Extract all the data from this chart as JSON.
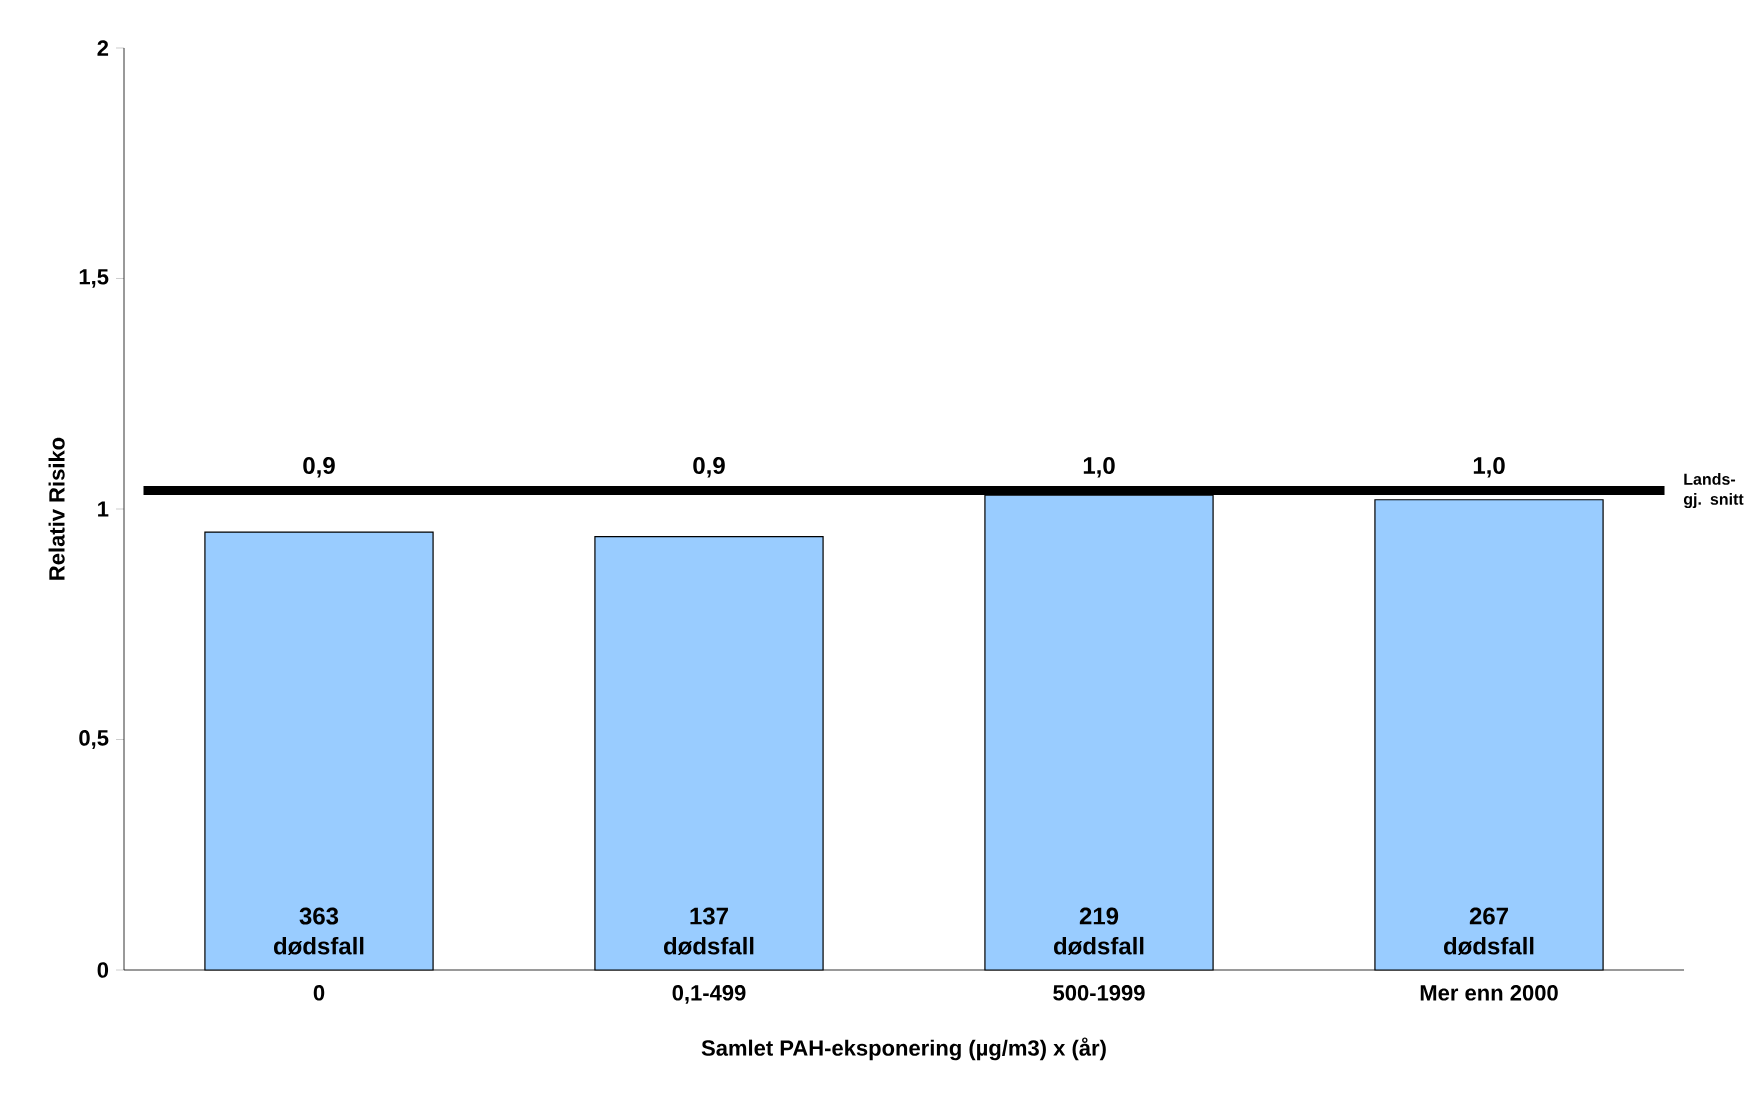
{
  "chart_data": {
    "type": "bar",
    "xlabel": "Samlet PAH-eksponering (µg/m3) x (år)",
    "ylabel": "Relativ Risiko",
    "categories": [
      "0",
      "0,1-499",
      "500-1999",
      "Mer enn 2000"
    ],
    "values": [
      0.95,
      0.94,
      1.03,
      1.02
    ],
    "value_labels": [
      "0,9",
      "0,9",
      "1,0",
      "1,0"
    ],
    "color": "#99ccff",
    "ylim": [
      0,
      2
    ],
    "yticks": [
      0,
      {
        "value": 0.5,
        "label": "0,5"
      },
      1,
      {
        "value": 1.5,
        "label": "1,5"
      },
      2
    ],
    "ref_lines": [
      {
        "axis": "y",
        "value": 1.04,
        "label": "Lands- gj. snitt",
        "color": "#000000"
      }
    ],
    "annotations": [
      "363 dødsfall",
      "137 dødsfall",
      "219 dødsfall",
      "267 dødsfall"
    ],
    "grid": false
  }
}
